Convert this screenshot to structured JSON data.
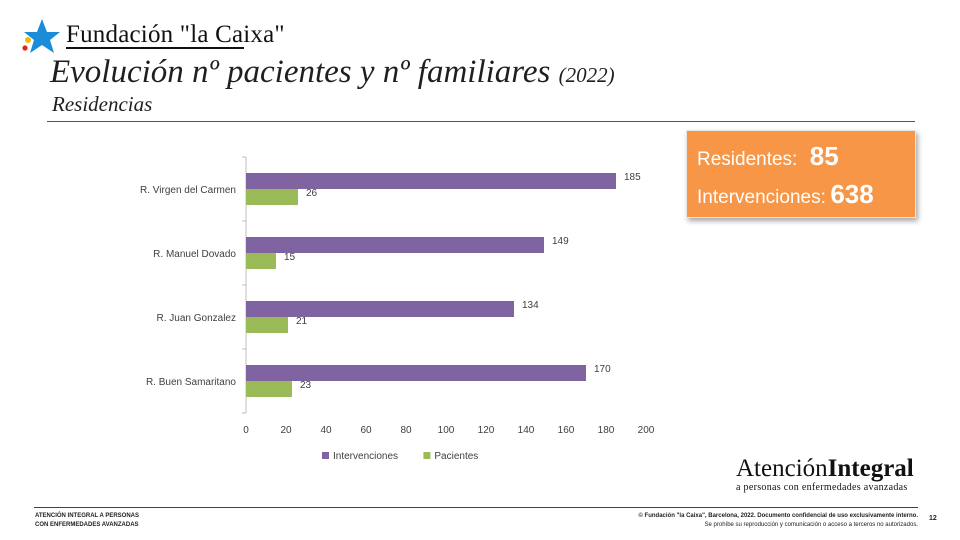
{
  "header": {
    "logo_text": "Fundación \"la Caixa\"",
    "title_main": "Evolución nº pacientes y nº familiares",
    "title_year": "(2022)",
    "subtitle": "Residencias"
  },
  "summary": {
    "residentes_label": "Residentes:",
    "residentes_value": "85",
    "intervenciones_label": "Intervenciones:",
    "intervenciones_value": "638",
    "color": "#f79646"
  },
  "chart_data": {
    "type": "bar",
    "orientation": "horizontal",
    "categories": [
      "R. Virgen del Carmen",
      "R. Manuel Dovado",
      "R. Juan Gonzalez",
      "R. Buen Samaritano"
    ],
    "series": [
      {
        "name": "Intervenciones",
        "values": [
          185,
          149,
          134,
          170
        ],
        "color": "#8064a2"
      },
      {
        "name": "Pacientes",
        "values": [
          26,
          15,
          21,
          23
        ],
        "color": "#9bbb59"
      }
    ],
    "xlim": [
      0,
      200
    ],
    "xticks": [
      0,
      20,
      40,
      60,
      80,
      100,
      120,
      140,
      160,
      180,
      200
    ],
    "legend_position": "bottom",
    "grid": false
  },
  "branding": {
    "atencion": "Atención",
    "integral": "Integral",
    "tagline": "a personas con enfermedades avanzadas"
  },
  "footer": {
    "left_line1": "ATENCIÓN INTEGRAL A PERSONAS",
    "left_line2": "CON ENFERMEDADES AVANZADAS",
    "right_line1": "© Fundación \"la Caixa\", Barcelona, 2022. Documento confidencial de uso exclusivamente interno.",
    "right_line2": "Se prohíbe su reproducción y comunicación o acceso a terceros no autorizados.",
    "page_number": "12"
  }
}
